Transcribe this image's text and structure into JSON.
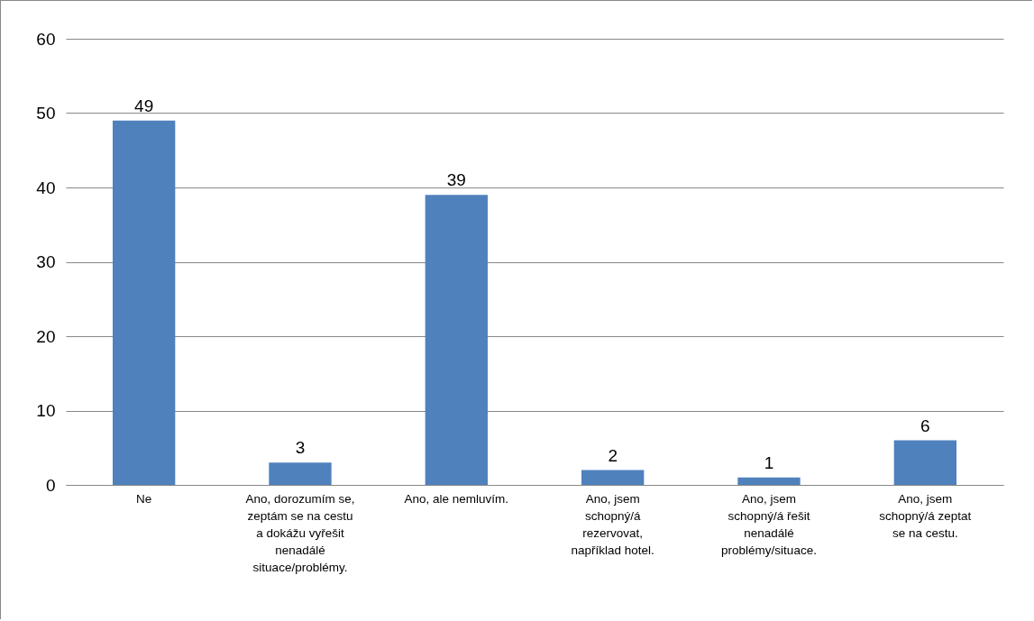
{
  "chart_data": {
    "type": "bar",
    "categories": [
      "Ne",
      "Ano, dorozumím se, zeptám se na cestu a dokážu vyřešit nenadálé situace/problémy.",
      "Ano, ale nemluvím.",
      "Ano, jsem schopný/á rezervovat, například hotel.",
      "Ano, jsem schopný/á řešit nenadálé problémy/situace.",
      "Ano, jsem schopný/á zeptat se na cestu."
    ],
    "values": [
      49,
      3,
      39,
      2,
      1,
      6
    ],
    "color": "#4f81bd",
    "ylim": [
      0,
      60
    ],
    "yticks": [
      0,
      10,
      20,
      30,
      40,
      50,
      60
    ],
    "grid": "y",
    "data_labels": true
  }
}
